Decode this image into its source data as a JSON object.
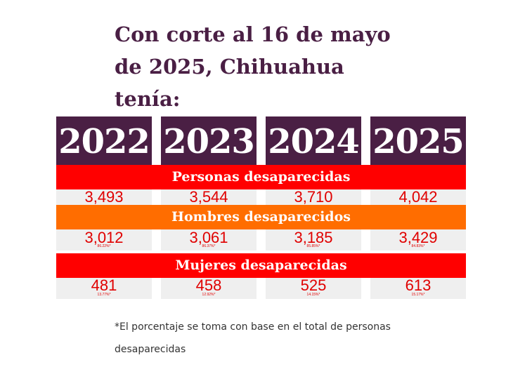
{
  "title": "Con corte al 16 de mayo de 2025, Chihuahua tenía:",
  "years": [
    "2022",
    "2023",
    "2024",
    "2025"
  ],
  "sections": {
    "personas": {
      "label": "Personas desaparecidas",
      "color": "#ff0000",
      "values": [
        "3,493",
        "3,544",
        "3,710",
        "4,042"
      ]
    },
    "hombres": {
      "label": "Hombres desaparecidos",
      "color": "#ff6d00",
      "values": [
        "3,012",
        "3,061",
        "3,185",
        "3,429"
      ],
      "percents": [
        "86.22%*",
        "86.37%*",
        "85.85%*",
        "84.83%*"
      ]
    },
    "mujeres": {
      "label": "Mujeres desaparecidas",
      "color": "#ff0000",
      "values": [
        "481",
        "458",
        "525",
        "613"
      ],
      "percents": [
        "13.77%*",
        "12.92%*",
        "14.15%*",
        "15.17%*"
      ]
    }
  },
  "colors": {
    "header": "#4a1f44",
    "value_text": "#e00000",
    "cell_bg": "#efefef"
  },
  "footnote": "*El porcentaje se toma con base en el total de personas desaparecidas"
}
